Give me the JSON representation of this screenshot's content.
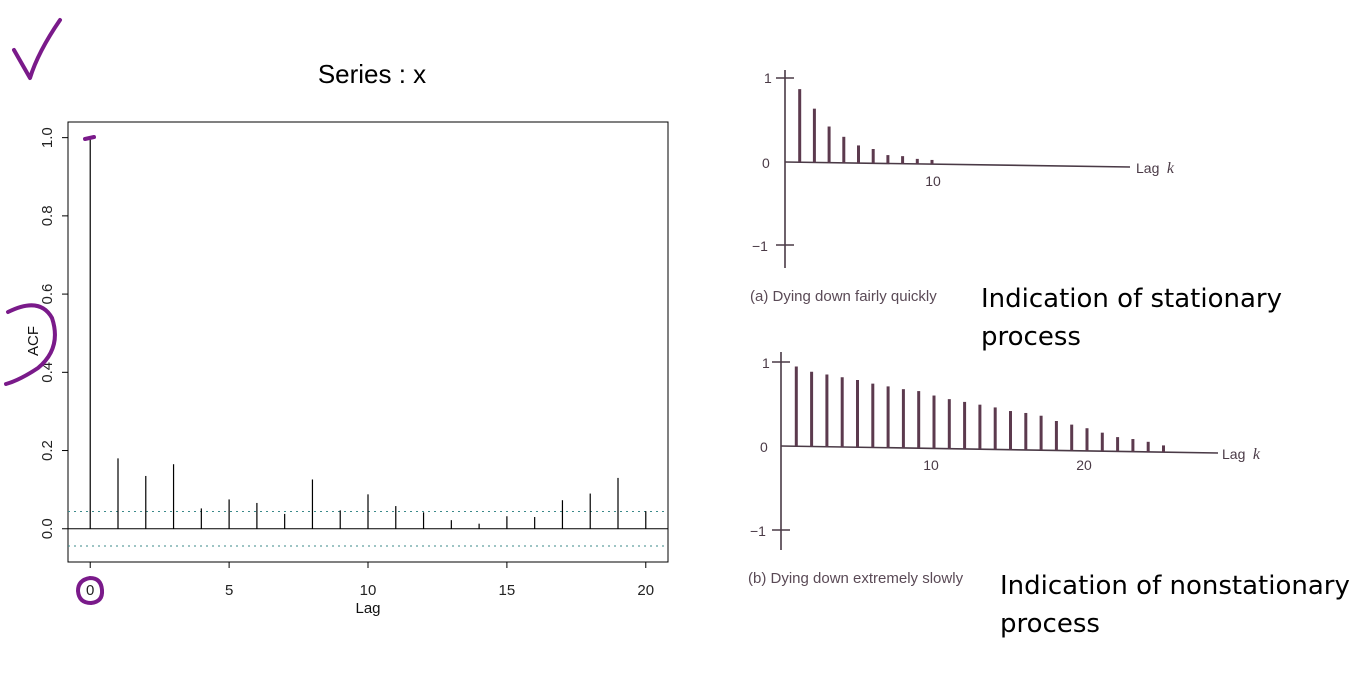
{
  "chart_data": [
    {
      "type": "bar",
      "title": "Series : x",
      "xlabel": "Lag",
      "ylabel": "ACF",
      "xlim": [
        -0.8,
        20.8
      ],
      "ylim": [
        -0.085,
        1.04
      ],
      "x_ticks": [
        "0",
        "5",
        "10",
        "15",
        "20"
      ],
      "y_ticks": [
        "0.0",
        "0.2",
        "0.4",
        "0.6",
        "0.8",
        "1.0"
      ],
      "confidence_bound": 0.044,
      "x": [
        0,
        1,
        2,
        3,
        4,
        5,
        6,
        7,
        8,
        9,
        10,
        11,
        12,
        13,
        14,
        15,
        16,
        17,
        18,
        19,
        20
      ],
      "values": [
        1.0,
        0.18,
        0.135,
        0.165,
        0.052,
        0.075,
        0.066,
        0.038,
        0.126,
        0.047,
        0.088,
        0.058,
        0.042,
        0.022,
        0.013,
        0.032,
        0.03,
        0.073,
        0.09,
        0.13,
        0.045
      ],
      "grid": false
    },
    {
      "type": "bar",
      "caption": "(a) Dying down fairly quickly",
      "xlabel": "Lag",
      "xlabel_k": "k",
      "y_ticks": [
        "1",
        "0",
        "−1"
      ],
      "x_ticks": [
        "10"
      ],
      "x": [
        1,
        2,
        3,
        4,
        5,
        6,
        7,
        8,
        9,
        10
      ],
      "values": [
        0.87,
        0.64,
        0.43,
        0.31,
        0.21,
        0.17,
        0.1,
        0.09,
        0.06,
        0.05
      ],
      "annotation": "Indication of stationary process"
    },
    {
      "type": "bar",
      "caption": "(b) Dying down extremely slowly",
      "xlabel": "Lag",
      "xlabel_k": "k",
      "y_ticks": [
        "1",
        "0",
        "−1"
      ],
      "x_ticks": [
        "10",
        "20"
      ],
      "x": [
        1,
        2,
        3,
        4,
        5,
        6,
        7,
        8,
        9,
        10,
        11,
        12,
        13,
        14,
        15,
        16,
        17,
        18,
        19,
        20,
        21,
        22,
        23,
        24,
        25
      ],
      "values": [
        0.95,
        0.89,
        0.86,
        0.83,
        0.8,
        0.76,
        0.73,
        0.7,
        0.68,
        0.63,
        0.59,
        0.56,
        0.53,
        0.5,
        0.46,
        0.44,
        0.41,
        0.35,
        0.31,
        0.27,
        0.22,
        0.17,
        0.15,
        0.12,
        0.08
      ],
      "annotation": "Indication of nonstationary process"
    }
  ],
  "notes": {
    "top": {
      "line1": "Indication of stationary",
      "line2": "process"
    },
    "bottom": {
      "line1": "Indication of nonstationary",
      "line2": "process"
    }
  },
  "colors": {
    "ink": "#000000",
    "book_ink": "#4a3a46",
    "book_bar": "#5c3a4e",
    "annotation_purple": "#7a1a8a",
    "confidence": "#3b8a8a"
  }
}
